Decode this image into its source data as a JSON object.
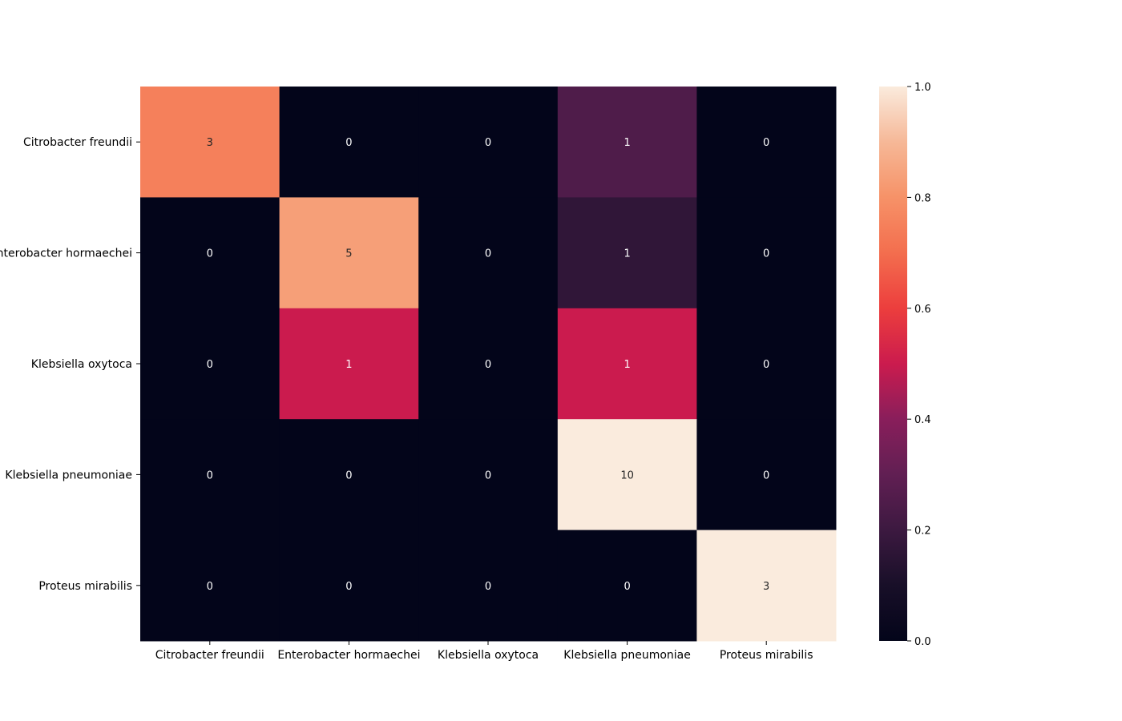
{
  "chart_data": {
    "type": "heatmap",
    "title": "",
    "xlabel": "",
    "ylabel": "",
    "x_categories": [
      "Citrobacter freundii",
      "Enterobacter hormaechei",
      "Klebsiella oxytoca",
      "Klebsiella pneumoniae",
      "Proteus mirabilis"
    ],
    "y_categories": [
      "Citrobacter freundii",
      "Enterobacter hormaechei",
      "Klebsiella oxytoca",
      "Klebsiella pneumoniae",
      "Proteus mirabilis"
    ],
    "annotations": [
      [
        3,
        0,
        0,
        1,
        0
      ],
      [
        0,
        5,
        0,
        1,
        0
      ],
      [
        0,
        1,
        0,
        1,
        0
      ],
      [
        0,
        0,
        0,
        10,
        0
      ],
      [
        0,
        0,
        0,
        0,
        3
      ]
    ],
    "color_values": [
      [
        0.75,
        0.0,
        0.0,
        0.25,
        0.0
      ],
      [
        0.0,
        0.833,
        0.0,
        0.167,
        0.0
      ],
      [
        0.0,
        0.5,
        0.0,
        0.5,
        0.0
      ],
      [
        0.0,
        0.0,
        0.0,
        1.0,
        0.0
      ],
      [
        0.0,
        0.0,
        0.0,
        0.0,
        1.0
      ]
    ],
    "colormap": "rocket",
    "colorbar": {
      "range": [
        0.0,
        1.0
      ],
      "ticks": [
        "0.0",
        "0.2",
        "0.4",
        "0.6",
        "0.8",
        "1.0"
      ]
    },
    "legend": "none",
    "grid": false
  }
}
